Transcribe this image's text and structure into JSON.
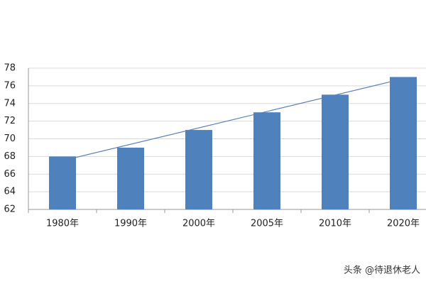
{
  "chart_data": {
    "type": "bar",
    "categories": [
      "1980年",
      "1990年",
      "2000年",
      "2005年",
      "2010年",
      "2020年"
    ],
    "values": [
      68,
      69,
      71,
      73,
      75,
      77
    ],
    "color": "#4f81bd",
    "ylim": [
      62,
      78
    ],
    "yticks": [
      62,
      64,
      66,
      68,
      70,
      72,
      74,
      76,
      78
    ],
    "grid": true,
    "trendline": true,
    "trendline_color": "#5b7fb8"
  },
  "watermark": "头条 @待退休老人"
}
